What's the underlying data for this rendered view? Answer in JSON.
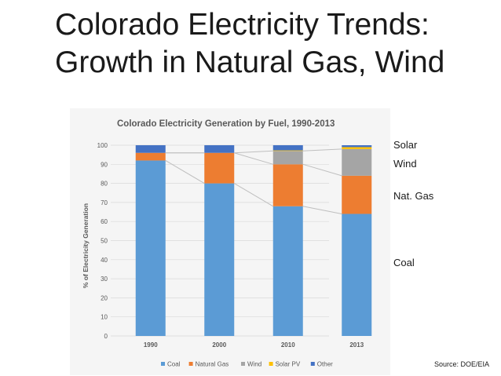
{
  "slide": {
    "title_line1": "Colorado Electricity Trends:",
    "title_line2": "Growth in Natural Gas, Wind",
    "source": "Source:  DOE/EIA"
  },
  "annotations": {
    "solar": "Solar",
    "wind": "Wind",
    "nat_gas": "Nat. Gas",
    "coal": "Coal"
  },
  "chart_data": {
    "type": "bar",
    "stacked": true,
    "title": "Colorado Electricity Generation by Fuel, 1990-2013",
    "xlabel": "",
    "ylabel": "% of Electricity Generation",
    "categories": [
      "1990",
      "2000",
      "2010",
      "2013"
    ],
    "ylim": [
      0,
      100
    ],
    "yticks": [
      0,
      10,
      20,
      30,
      40,
      50,
      60,
      70,
      80,
      90,
      100
    ],
    "grid": true,
    "legend_position": "bottom",
    "series": [
      {
        "name": "Coal",
        "color": "#5b9bd5",
        "values": [
          92,
          80,
          68,
          64
        ]
      },
      {
        "name": "Natural Gas",
        "color": "#ed7d31",
        "values": [
          4,
          16,
          22,
          20
        ]
      },
      {
        "name": "Wind",
        "color": "#a5a5a5",
        "values": [
          0,
          0,
          7,
          14
        ]
      },
      {
        "name": "Solar PV",
        "color": "#ffc000",
        "values": [
          0,
          0,
          0.3,
          1
        ]
      },
      {
        "name": "Other",
        "color": "#4472c4",
        "values": [
          4,
          4,
          2.7,
          1
        ]
      }
    ],
    "trend_lines": [
      "Coal",
      "Natural Gas",
      "Wind"
    ]
  }
}
